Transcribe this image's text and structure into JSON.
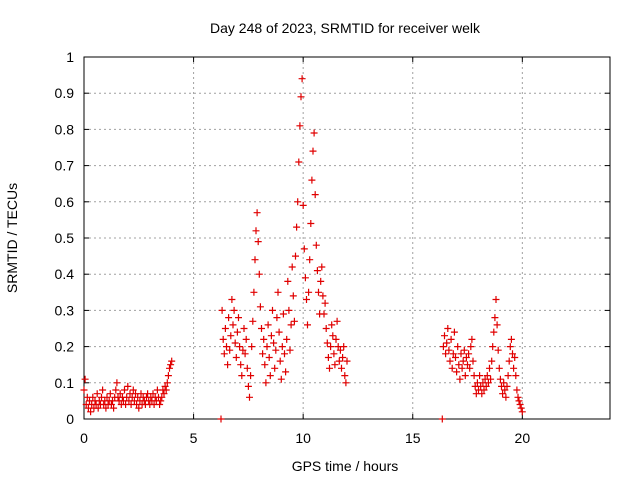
{
  "chart_data": {
    "type": "scatter",
    "title": "Day 248 of 2023, SRMTID for receiver welk",
    "xlabel": "GPS time / hours",
    "ylabel": "SRMTID / TECUs",
    "xlim": [
      0,
      24
    ],
    "ylim": [
      0,
      1
    ],
    "xticks": [
      0,
      5,
      10,
      15,
      20
    ],
    "yticks": [
      0,
      0.1,
      0.2,
      0.3,
      0.4,
      0.5,
      0.6,
      0.7,
      0.8,
      0.9,
      1
    ],
    "xtick_labels": [
      "0",
      "5",
      "10",
      "15",
      "20"
    ],
    "ytick_labels": [
      "0",
      "0.1",
      "0.2",
      "0.3",
      "0.4",
      "0.5",
      "0.6",
      "0.7",
      "0.8",
      "0.9",
      "1"
    ],
    "grid": true,
    "marker": "plus",
    "color": "#e00000",
    "series": [
      {
        "name": "SRMTID",
        "points": [
          [
            0.0,
            0.08
          ],
          [
            0.05,
            0.11
          ],
          [
            0.1,
            0.04
          ],
          [
            0.15,
            0.06
          ],
          [
            0.2,
            0.03
          ],
          [
            0.25,
            0.05
          ],
          [
            0.3,
            0.02
          ],
          [
            0.35,
            0.04
          ],
          [
            0.4,
            0.06
          ],
          [
            0.45,
            0.03
          ],
          [
            0.5,
            0.05
          ],
          [
            0.55,
            0.04
          ],
          [
            0.6,
            0.07
          ],
          [
            0.65,
            0.03
          ],
          [
            0.7,
            0.05
          ],
          [
            0.75,
            0.04
          ],
          [
            0.8,
            0.06
          ],
          [
            0.85,
            0.08
          ],
          [
            0.9,
            0.04
          ],
          [
            0.95,
            0.05
          ],
          [
            1.0,
            0.03
          ],
          [
            1.05,
            0.06
          ],
          [
            1.1,
            0.04
          ],
          [
            1.15,
            0.05
          ],
          [
            1.2,
            0.07
          ],
          [
            1.25,
            0.04
          ],
          [
            1.3,
            0.05
          ],
          [
            1.35,
            0.03
          ],
          [
            1.4,
            0.06
          ],
          [
            1.45,
            0.08
          ],
          [
            1.5,
            0.1
          ],
          [
            1.55,
            0.06
          ],
          [
            1.6,
            0.05
          ],
          [
            1.65,
            0.07
          ],
          [
            1.7,
            0.04
          ],
          [
            1.75,
            0.06
          ],
          [
            1.8,
            0.05
          ],
          [
            1.85,
            0.08
          ],
          [
            1.9,
            0.04
          ],
          [
            1.95,
            0.06
          ],
          [
            2.0,
            0.09
          ],
          [
            2.05,
            0.05
          ],
          [
            2.1,
            0.07
          ],
          [
            2.15,
            0.04
          ],
          [
            2.2,
            0.06
          ],
          [
            2.25,
            0.08
          ],
          [
            2.3,
            0.05
          ],
          [
            2.35,
            0.07
          ],
          [
            2.4,
            0.04
          ],
          [
            2.45,
            0.06
          ],
          [
            2.5,
            0.03
          ],
          [
            2.55,
            0.05
          ],
          [
            2.6,
            0.07
          ],
          [
            2.65,
            0.04
          ],
          [
            2.7,
            0.06
          ],
          [
            2.75,
            0.05
          ],
          [
            2.8,
            0.04
          ],
          [
            2.85,
            0.06
          ],
          [
            2.9,
            0.07
          ],
          [
            2.95,
            0.05
          ],
          [
            3.0,
            0.04
          ],
          [
            3.05,
            0.06
          ],
          [
            3.1,
            0.05
          ],
          [
            3.15,
            0.07
          ],
          [
            3.2,
            0.04
          ],
          [
            3.25,
            0.06
          ],
          [
            3.3,
            0.05
          ],
          [
            3.35,
            0.08
          ],
          [
            3.4,
            0.06
          ],
          [
            3.45,
            0.04
          ],
          [
            3.5,
            0.05
          ],
          [
            3.55,
            0.06
          ],
          [
            3.6,
            0.08
          ],
          [
            3.65,
            0.07
          ],
          [
            3.7,
            0.09
          ],
          [
            3.75,
            0.08
          ],
          [
            3.8,
            0.1
          ],
          [
            3.85,
            0.12
          ],
          [
            3.9,
            0.14
          ],
          [
            3.95,
            0.15
          ],
          [
            4.0,
            0.16
          ],
          [
            6.3,
            0.3
          ],
          [
            6.35,
            0.22
          ],
          [
            6.4,
            0.18
          ],
          [
            6.45,
            0.25
          ],
          [
            6.5,
            0.2
          ],
          [
            6.55,
            0.15
          ],
          [
            6.6,
            0.28
          ],
          [
            6.65,
            0.19
          ],
          [
            6.7,
            0.23
          ],
          [
            6.75,
            0.33
          ],
          [
            6.8,
            0.26
          ],
          [
            6.85,
            0.3
          ],
          [
            6.9,
            0.21
          ],
          [
            6.95,
            0.17
          ],
          [
            7.0,
            0.24
          ],
          [
            7.05,
            0.28
          ],
          [
            7.1,
            0.2
          ],
          [
            7.15,
            0.15
          ],
          [
            7.2,
            0.12
          ],
          [
            7.25,
            0.19
          ],
          [
            7.3,
            0.25
          ],
          [
            7.35,
            0.18
          ],
          [
            7.4,
            0.22
          ],
          [
            7.45,
            0.14
          ],
          [
            7.5,
            0.09
          ],
          [
            7.55,
            0.06
          ],
          [
            7.6,
            0.12
          ],
          [
            7.65,
            0.2
          ],
          [
            7.7,
            0.27
          ],
          [
            7.75,
            0.35
          ],
          [
            7.8,
            0.44
          ],
          [
            7.85,
            0.52
          ],
          [
            7.9,
            0.57
          ],
          [
            7.95,
            0.49
          ],
          [
            8.0,
            0.4
          ],
          [
            8.05,
            0.31
          ],
          [
            8.1,
            0.25
          ],
          [
            8.15,
            0.18
          ],
          [
            8.2,
            0.22
          ],
          [
            8.25,
            0.15
          ],
          [
            8.3,
            0.1
          ],
          [
            8.35,
            0.2
          ],
          [
            8.4,
            0.26
          ],
          [
            8.45,
            0.17
          ],
          [
            8.5,
            0.12
          ],
          [
            8.55,
            0.23
          ],
          [
            8.6,
            0.3
          ],
          [
            8.65,
            0.21
          ],
          [
            8.7,
            0.14
          ],
          [
            8.75,
            0.19
          ],
          [
            8.8,
            0.28
          ],
          [
            8.85,
            0.35
          ],
          [
            8.9,
            0.24
          ],
          [
            8.95,
            0.16
          ],
          [
            9.0,
            0.11
          ],
          [
            9.05,
            0.2
          ],
          [
            9.1,
            0.29
          ],
          [
            9.15,
            0.18
          ],
          [
            9.2,
            0.13
          ],
          [
            9.25,
            0.22
          ],
          [
            9.3,
            0.38
          ],
          [
            9.35,
            0.3
          ],
          [
            9.4,
            0.19
          ],
          [
            9.45,
            0.26
          ],
          [
            9.5,
            0.42
          ],
          [
            9.55,
            0.34
          ],
          [
            9.6,
            0.27
          ],
          [
            9.65,
            0.45
          ],
          [
            9.7,
            0.53
          ],
          [
            9.75,
            0.6
          ],
          [
            9.8,
            0.71
          ],
          [
            9.85,
            0.81
          ],
          [
            9.9,
            0.89
          ],
          [
            9.95,
            0.94
          ],
          [
            10.0,
            0.59
          ],
          [
            10.05,
            0.47
          ],
          [
            10.1,
            0.39
          ],
          [
            10.15,
            0.33
          ],
          [
            10.2,
            0.26
          ],
          [
            10.25,
            0.35
          ],
          [
            10.3,
            0.44
          ],
          [
            10.35,
            0.54
          ],
          [
            10.4,
            0.66
          ],
          [
            10.45,
            0.74
          ],
          [
            10.5,
            0.79
          ],
          [
            10.55,
            0.62
          ],
          [
            10.6,
            0.48
          ],
          [
            10.65,
            0.41
          ],
          [
            10.7,
            0.35
          ],
          [
            10.75,
            0.29
          ],
          [
            10.8,
            0.38
          ],
          [
            10.85,
            0.42
          ],
          [
            10.9,
            0.34
          ],
          [
            10.95,
            0.29
          ],
          [
            11.0,
            0.32
          ],
          [
            11.05,
            0.25
          ],
          [
            11.1,
            0.21
          ],
          [
            11.15,
            0.17
          ],
          [
            11.2,
            0.14
          ],
          [
            11.25,
            0.2
          ],
          [
            11.3,
            0.26
          ],
          [
            11.35,
            0.23
          ],
          [
            11.4,
            0.18
          ],
          [
            11.45,
            0.15
          ],
          [
            11.5,
            0.22
          ],
          [
            11.55,
            0.27
          ],
          [
            11.6,
            0.2
          ],
          [
            11.65,
            0.16
          ],
          [
            11.7,
            0.19
          ],
          [
            11.75,
            0.14
          ],
          [
            11.8,
            0.17
          ],
          [
            11.85,
            0.2
          ],
          [
            11.9,
            0.12
          ],
          [
            11.95,
            0.1
          ],
          [
            12.0,
            0.16
          ],
          [
            16.4,
            0.2
          ],
          [
            16.45,
            0.23
          ],
          [
            16.5,
            0.18
          ],
          [
            16.55,
            0.21
          ],
          [
            16.6,
            0.25
          ],
          [
            16.65,
            0.19
          ],
          [
            16.7,
            0.16
          ],
          [
            16.75,
            0.22
          ],
          [
            16.8,
            0.14
          ],
          [
            16.85,
            0.18
          ],
          [
            16.9,
            0.24
          ],
          [
            16.95,
            0.17
          ],
          [
            17.0,
            0.13
          ],
          [
            17.05,
            0.2
          ],
          [
            17.1,
            0.15
          ],
          [
            17.15,
            0.11
          ],
          [
            17.2,
            0.18
          ],
          [
            17.25,
            0.14
          ],
          [
            17.3,
            0.16
          ],
          [
            17.35,
            0.19
          ],
          [
            17.4,
            0.12
          ],
          [
            17.45,
            0.17
          ],
          [
            17.5,
            0.15
          ],
          [
            17.55,
            0.18
          ],
          [
            17.6,
            0.14
          ],
          [
            17.65,
            0.2
          ],
          [
            17.7,
            0.22
          ],
          [
            17.75,
            0.16
          ],
          [
            17.8,
            0.12
          ],
          [
            17.85,
            0.09
          ],
          [
            17.9,
            0.07
          ],
          [
            17.95,
            0.1
          ],
          [
            18.0,
            0.08
          ],
          [
            18.05,
            0.12
          ],
          [
            18.1,
            0.09
          ],
          [
            18.15,
            0.07
          ],
          [
            18.2,
            0.1
          ],
          [
            18.25,
            0.08
          ],
          [
            18.3,
            0.11
          ],
          [
            18.35,
            0.09
          ],
          [
            18.4,
            0.12
          ],
          [
            18.45,
            0.1
          ],
          [
            18.5,
            0.14
          ],
          [
            18.55,
            0.11
          ],
          [
            18.6,
            0.16
          ],
          [
            18.65,
            0.2
          ],
          [
            18.7,
            0.24
          ],
          [
            18.75,
            0.28
          ],
          [
            18.8,
            0.33
          ],
          [
            18.85,
            0.26
          ],
          [
            18.9,
            0.19
          ],
          [
            18.95,
            0.14
          ],
          [
            19.0,
            0.11
          ],
          [
            19.05,
            0.09
          ],
          [
            19.1,
            0.07
          ],
          [
            19.15,
            0.1
          ],
          [
            19.2,
            0.08
          ],
          [
            19.25,
            0.06
          ],
          [
            19.3,
            0.09
          ],
          [
            19.35,
            0.12
          ],
          [
            19.4,
            0.16
          ],
          [
            19.45,
            0.2
          ],
          [
            19.5,
            0.22
          ],
          [
            19.55,
            0.18
          ],
          [
            19.6,
            0.14
          ],
          [
            19.65,
            0.17
          ],
          [
            19.7,
            0.12
          ],
          [
            19.75,
            0.08
          ],
          [
            19.8,
            0.06
          ],
          [
            19.85,
            0.05
          ],
          [
            19.9,
            0.04
          ],
          [
            19.95,
            0.03
          ],
          [
            20.0,
            0.02
          ],
          [
            6.25,
            0.0
          ],
          [
            16.35,
            0.0
          ]
        ]
      }
    ]
  }
}
